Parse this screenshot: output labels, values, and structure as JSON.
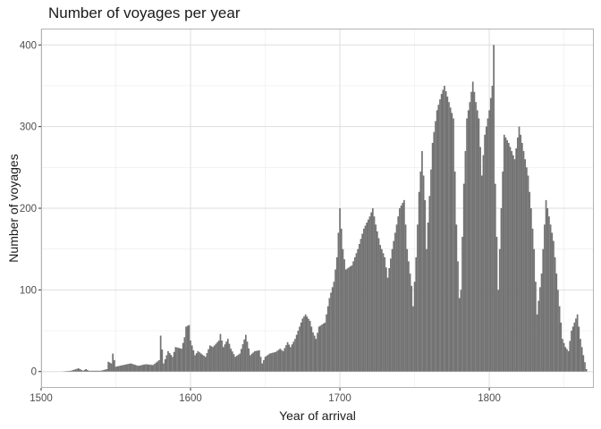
{
  "chart_data": {
    "type": "bar",
    "title": "Number of voyages per year",
    "xlabel": "Year of arrival",
    "ylabel": "Number of voyages",
    "xlim": [
      1500,
      1870
    ],
    "ylim": [
      0,
      400
    ],
    "x_ticks": [
      1500,
      1600,
      1700,
      1800
    ],
    "y_ticks": [
      0,
      100,
      200,
      300,
      400
    ],
    "grid": true,
    "bar_color": "#737373",
    "anchors": [
      [
        1514,
        0
      ],
      [
        1520,
        1
      ],
      [
        1525,
        4
      ],
      [
        1528,
        1
      ],
      [
        1530,
        3
      ],
      [
        1532,
        1
      ],
      [
        1540,
        1
      ],
      [
        1544,
        3
      ],
      [
        1545,
        12
      ],
      [
        1547,
        10
      ],
      [
        1548,
        22
      ],
      [
        1550,
        6
      ],
      [
        1555,
        8
      ],
      [
        1560,
        10
      ],
      [
        1565,
        7
      ],
      [
        1570,
        9
      ],
      [
        1575,
        8
      ],
      [
        1579,
        14
      ],
      [
        1580,
        44
      ],
      [
        1582,
        10
      ],
      [
        1585,
        25
      ],
      [
        1588,
        18
      ],
      [
        1590,
        30
      ],
      [
        1594,
        28
      ],
      [
        1596,
        42
      ],
      [
        1597,
        55
      ],
      [
        1599,
        57
      ],
      [
        1600,
        38
      ],
      [
        1603,
        20
      ],
      [
        1605,
        25
      ],
      [
        1610,
        18
      ],
      [
        1613,
        32
      ],
      [
        1615,
        30
      ],
      [
        1619,
        38
      ],
      [
        1620,
        46
      ],
      [
        1622,
        30
      ],
      [
        1625,
        40
      ],
      [
        1627,
        28
      ],
      [
        1630,
        18
      ],
      [
        1633,
        22
      ],
      [
        1637,
        45
      ],
      [
        1640,
        20
      ],
      [
        1643,
        25
      ],
      [
        1646,
        26
      ],
      [
        1648,
        10
      ],
      [
        1650,
        18
      ],
      [
        1653,
        22
      ],
      [
        1657,
        24
      ],
      [
        1660,
        28
      ],
      [
        1662,
        25
      ],
      [
        1665,
        36
      ],
      [
        1667,
        30
      ],
      [
        1670,
        40
      ],
      [
        1673,
        55
      ],
      [
        1675,
        65
      ],
      [
        1677,
        70
      ],
      [
        1680,
        62
      ],
      [
        1682,
        48
      ],
      [
        1684,
        40
      ],
      [
        1686,
        55
      ],
      [
        1690,
        60
      ],
      [
        1693,
        90
      ],
      [
        1696,
        110
      ],
      [
        1698,
        140
      ],
      [
        1700,
        200
      ],
      [
        1702,
        150
      ],
      [
        1704,
        125
      ],
      [
        1708,
        130
      ],
      [
        1712,
        150
      ],
      [
        1716,
        175
      ],
      [
        1720,
        190
      ],
      [
        1722,
        200
      ],
      [
        1724,
        180
      ],
      [
        1727,
        155
      ],
      [
        1730,
        140
      ],
      [
        1732,
        115
      ],
      [
        1735,
        150
      ],
      [
        1740,
        200
      ],
      [
        1743,
        210
      ],
      [
        1745,
        150
      ],
      [
        1748,
        105
      ],
      [
        1749,
        80
      ],
      [
        1751,
        140
      ],
      [
        1753,
        220
      ],
      [
        1755,
        270
      ],
      [
        1757,
        210
      ],
      [
        1758,
        150
      ],
      [
        1762,
        280
      ],
      [
        1765,
        320
      ],
      [
        1768,
        340
      ],
      [
        1770,
        350
      ],
      [
        1773,
        330
      ],
      [
        1776,
        310
      ],
      [
        1778,
        180
      ],
      [
        1780,
        90
      ],
      [
        1781,
        100
      ],
      [
        1783,
        230
      ],
      [
        1785,
        310
      ],
      [
        1787,
        330
      ],
      [
        1789,
        355
      ],
      [
        1791,
        330
      ],
      [
        1793,
        310
      ],
      [
        1795,
        240
      ],
      [
        1797,
        290
      ],
      [
        1800,
        320
      ],
      [
        1802,
        350
      ],
      [
        1803,
        400
      ],
      [
        1804,
        230
      ],
      [
        1806,
        100
      ],
      [
        1808,
        200
      ],
      [
        1810,
        290
      ],
      [
        1813,
        280
      ],
      [
        1815,
        270
      ],
      [
        1817,
        260
      ],
      [
        1820,
        300
      ],
      [
        1823,
        270
      ],
      [
        1826,
        240
      ],
      [
        1828,
        200
      ],
      [
        1830,
        150
      ],
      [
        1832,
        70
      ],
      [
        1835,
        120
      ],
      [
        1838,
        210
      ],
      [
        1840,
        190
      ],
      [
        1843,
        160
      ],
      [
        1845,
        120
      ],
      [
        1847,
        80
      ],
      [
        1849,
        40
      ],
      [
        1851,
        30
      ],
      [
        1853,
        25
      ],
      [
        1855,
        50
      ],
      [
        1857,
        60
      ],
      [
        1859,
        70
      ],
      [
        1861,
        40
      ],
      [
        1863,
        20
      ],
      [
        1865,
        3
      ]
    ]
  }
}
